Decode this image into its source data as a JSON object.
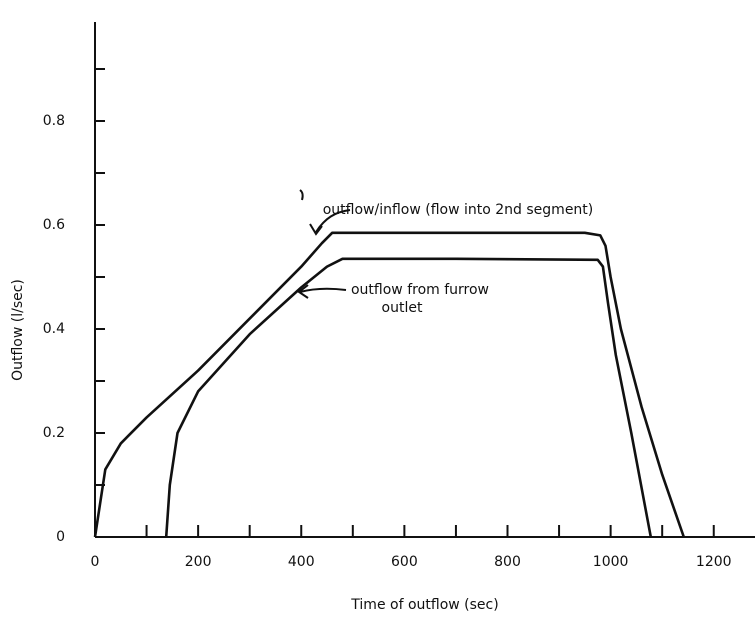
{
  "chart_data": {
    "type": "line",
    "x_label": "Time of outflow (sec)",
    "y_label": "Outflow (l/sec)",
    "xlim": [
      0,
      1280
    ],
    "ylim": [
      0,
      1
    ],
    "xticks": [
      0,
      200,
      400,
      600,
      800,
      1000,
      1200
    ],
    "yticks": [
      0,
      0.2,
      0.4,
      0.6,
      0.8
    ],
    "xminorticks": [
      100,
      300,
      500,
      700,
      900,
      1100
    ],
    "yminorticks": [
      0.1,
      0.3,
      0.5,
      0.7,
      0.9
    ],
    "series": [
      {
        "color": "#111111",
        "x": [
          0,
          20,
          50,
          100,
          200,
          300,
          400,
          440,
          460,
          600,
          800,
          950,
          980,
          990,
          1000,
          1020,
          1060,
          1100,
          1142
        ],
        "values": [
          0,
          0.13,
          0.18,
          0.23,
          0.32,
          0.42,
          0.52,
          0.565,
          0.585,
          0.585,
          0.585,
          0.585,
          0.58,
          0.56,
          0.5,
          0.4,
          0.25,
          0.12,
          0
        ]
      },
      {
        "color": "#111111",
        "x": [
          138,
          145,
          160,
          200,
          300,
          400,
          450,
          480,
          700,
          975,
          985,
          995,
          1010,
          1040,
          1078
        ],
        "values": [
          0,
          0.1,
          0.2,
          0.28,
          0.39,
          0.48,
          0.52,
          0.535,
          0.535,
          0.533,
          0.52,
          0.45,
          0.35,
          0.2,
          0
        ]
      }
    ],
    "annotations": [
      "outflow/inflow (flow into 2nd segment)",
      "outflow from furrow",
      "outlet"
    ]
  }
}
